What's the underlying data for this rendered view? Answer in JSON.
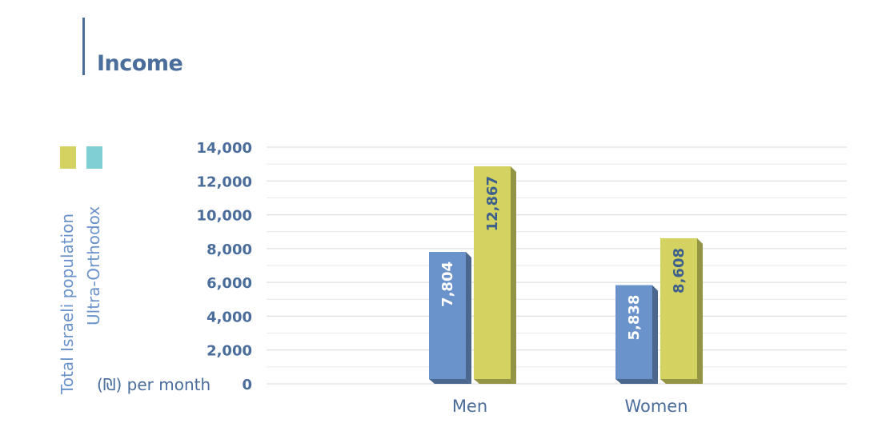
{
  "header": {
    "title": "Income"
  },
  "legend": [
    {
      "label": "Total Israeli population",
      "color": "#d4d362"
    },
    {
      "label": "Ultra-Orthodox",
      "color": "#7fd0d4"
    }
  ],
  "unit_label": "(₪) per month",
  "colors": {
    "axis_text": "#4a6d9b",
    "bar_blue": "#6b93cb",
    "bar_yellow": "#d4d362",
    "label_dark": "#3d5f8c",
    "label_light": "#ffffff"
  },
  "chart_data": {
    "type": "bar",
    "title": "Income",
    "categories": [
      "Men",
      "Women"
    ],
    "series": [
      {
        "values": [
          7804,
          5838
        ],
        "label_color": "#ffffff",
        "color": "#6b93cb"
      },
      {
        "values": [
          12867,
          8608
        ],
        "label_color": "#3d5f8c",
        "color": "#d4d362"
      }
    ],
    "data_labels": [
      [
        "7,804",
        "5,838"
      ],
      [
        "12,867",
        "8,608"
      ]
    ],
    "yticks": [
      "0",
      "2,000",
      "4,000",
      "6,000",
      "8,000",
      "10,000",
      "12,000",
      "14,000"
    ],
    "ytick_values": [
      0,
      2000,
      4000,
      6000,
      8000,
      10000,
      12000,
      14000
    ],
    "ylim": [
      0,
      14000
    ],
    "grid": true
  }
}
